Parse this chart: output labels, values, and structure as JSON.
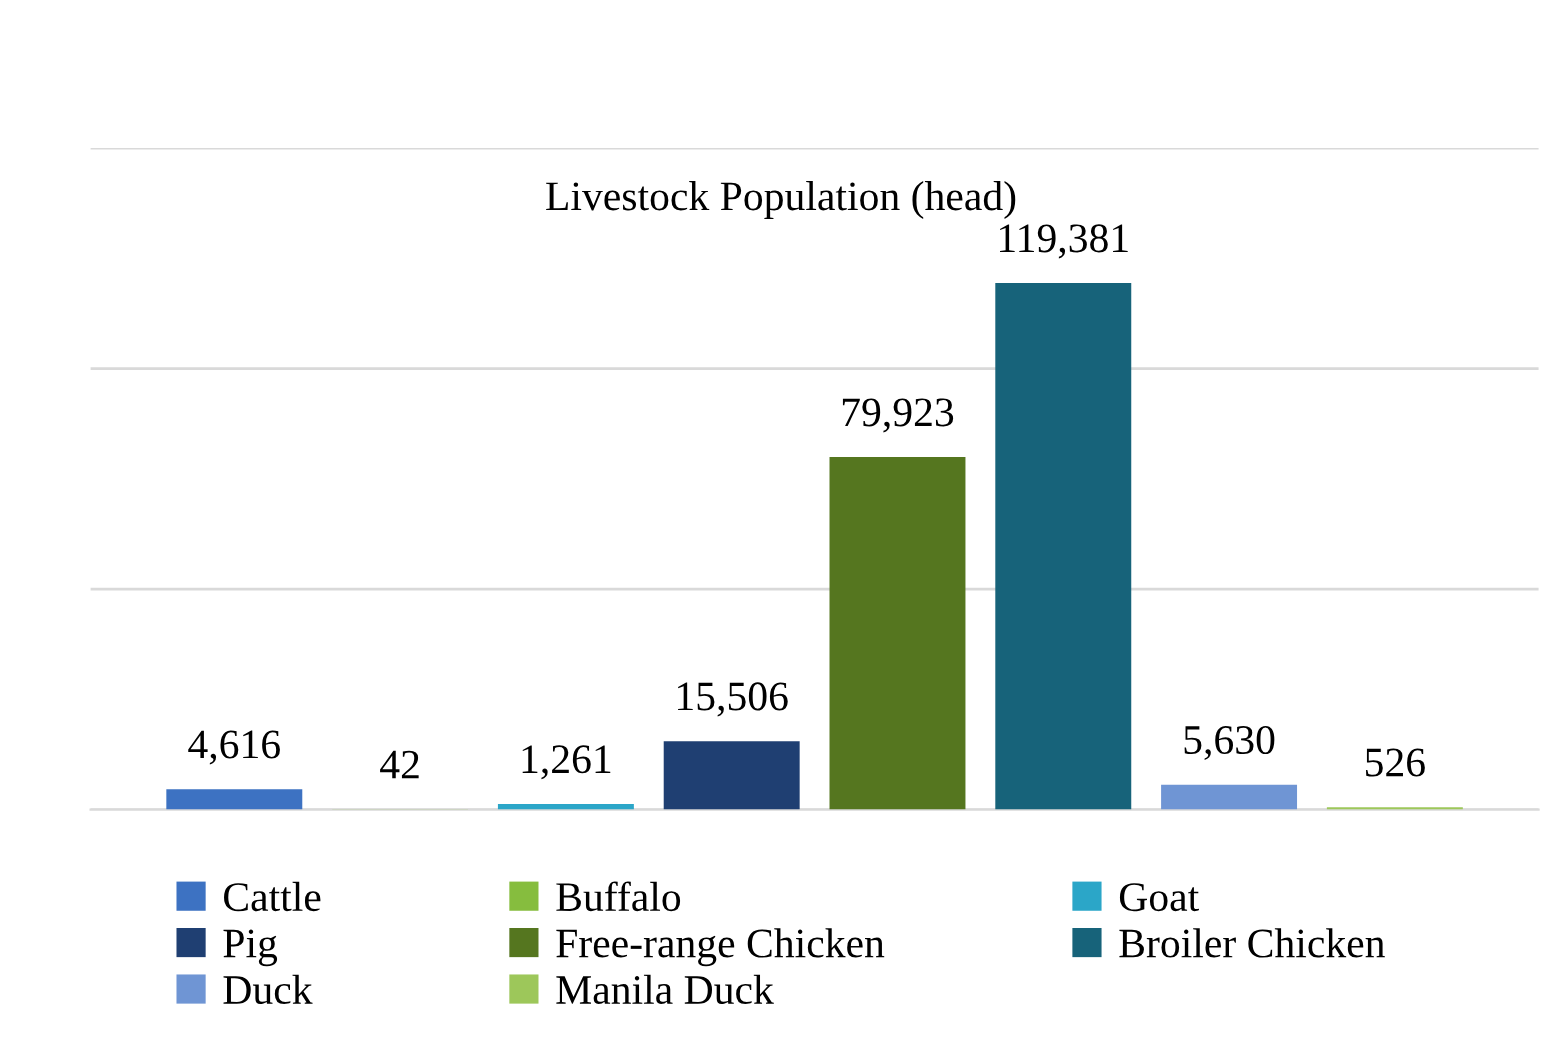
{
  "chart_data": {
    "type": "bar",
    "title": "Livestock Population (head)",
    "categories": [
      null
    ],
    "series": [
      {
        "name": "Cattle",
        "color": "#3d72c2",
        "values": [
          4616
        ],
        "value_labels": [
          "4,616"
        ]
      },
      {
        "name": "Buffalo",
        "color": "#86bd3e",
        "values": [
          42
        ],
        "value_labels": [
          "42"
        ]
      },
      {
        "name": "Goat",
        "color": "#2ba6c8",
        "values": [
          1261
        ],
        "value_labels": [
          "1,261"
        ]
      },
      {
        "name": "Pig",
        "color": "#1f3f72",
        "values": [
          15506
        ],
        "value_labels": [
          "15,506"
        ]
      },
      {
        "name": "Free-range Chicken",
        "color": "#55761f",
        "values": [
          79923
        ],
        "value_labels": [
          "79,923"
        ]
      },
      {
        "name": "Broiler Chicken",
        "color": "#17637a",
        "values": [
          119381
        ],
        "value_labels": [
          "119,381"
        ]
      },
      {
        "name": "Duck",
        "color": "#6f95d4",
        "values": [
          5630
        ],
        "value_labels": [
          "5,630"
        ]
      },
      {
        "name": "Manila Duck",
        "color": "#9dc75a",
        "values": [
          526
        ],
        "value_labels": [
          "526"
        ]
      }
    ],
    "ylim": [
      0,
      150000
    ],
    "yticks": [
      {
        "value": 0,
        "label": null
      },
      {
        "value": 50000,
        "label": null
      },
      {
        "value": 100000,
        "label": null
      },
      {
        "value": 150000,
        "label": null
      }
    ],
    "grid": "y",
    "legend": "bottom"
  }
}
